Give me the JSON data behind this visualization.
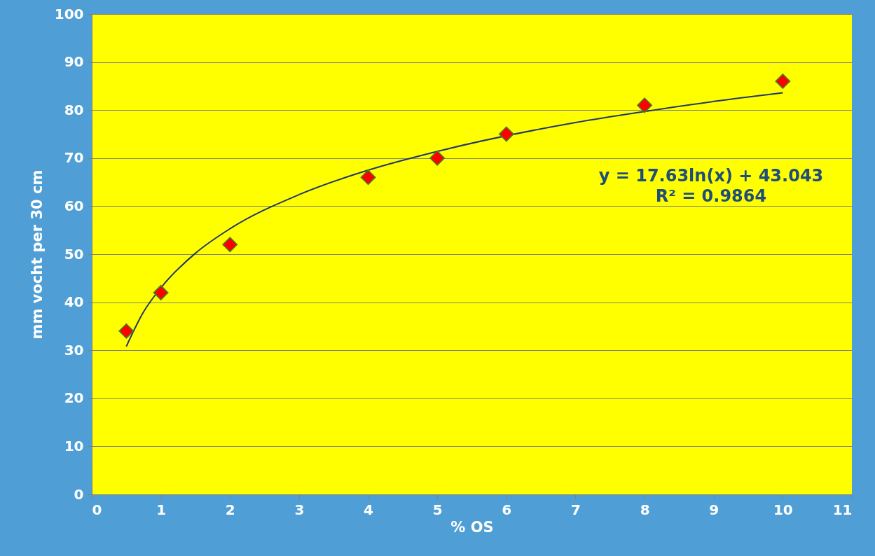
{
  "chart_data": {
    "type": "scatter",
    "xlabel": "% OS",
    "ylabel": "mm vocht per 30 cm",
    "series": [
      {
        "color": "#ff0000",
        "marker": "diamond",
        "x": [
          0.5,
          1,
          2,
          4,
          5,
          6,
          8,
          10
        ],
        "values": [
          34,
          42,
          52,
          66,
          70,
          75,
          81,
          86
        ]
      },
      {
        "type": "line",
        "color": "#1f3864",
        "line_style": "solid",
        "x": [
          0.5,
          0.75,
          1,
          1.5,
          2,
          3,
          4,
          5,
          7,
          8,
          9,
          10
        ],
        "values": [
          30.8,
          38.0,
          43.0,
          50.2,
          55.3,
          62.4,
          67.5,
          71.4,
          77.4,
          79.7,
          81.8,
          83.6
        ]
      }
    ],
    "annotations": [
      "y = 17.63ln(x) + 43.043",
      "R² = 0.9864"
    ],
    "xlim": [
      0,
      11
    ],
    "xticks": [
      0,
      1,
      2,
      3,
      4,
      5,
      6,
      7,
      8,
      9,
      10,
      11
    ],
    "ylim": [
      0,
      100
    ],
    "yticks": [
      0,
      10,
      20,
      30,
      40,
      50,
      60,
      70,
      80,
      90,
      100
    ],
    "grid": "y"
  }
}
